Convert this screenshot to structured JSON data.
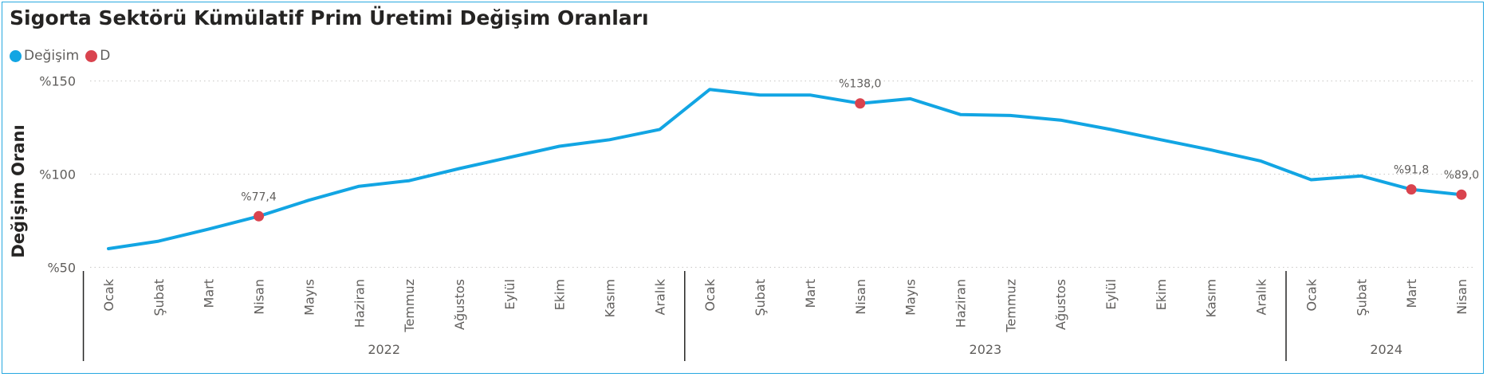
{
  "title": "Sigorta Sektörü Kümülatif Prim Üretimi Değişim Oranları",
  "legend": [
    {
      "label": "Değişim",
      "color": "#12a5e3"
    },
    {
      "label": "D",
      "color": "#d9434e"
    }
  ],
  "chart_data": {
    "type": "line",
    "title": "Sigorta Sektörü Kümülatif Prim Üretimi Değişim Oranları",
    "ylabel": "Değişim Oranı",
    "xlabel": "",
    "ylim": [
      45,
      155
    ],
    "yticks": [
      {
        "value": 50,
        "label": "%50"
      },
      {
        "value": 100,
        "label": "%100"
      },
      {
        "value": 150,
        "label": "%150"
      }
    ],
    "grid": true,
    "legend_position": "top-left",
    "years": [
      {
        "label": "2022",
        "months": 12
      },
      {
        "label": "2023",
        "months": 12
      },
      {
        "label": "2024",
        "months": 4
      }
    ],
    "categories": [
      "Ocak",
      "Şubat",
      "Mart",
      "Nisan",
      "Mayıs",
      "Haziran",
      "Temmuz",
      "Ağustos",
      "Eylül",
      "Ekim",
      "Kasım",
      "Aralık",
      "Ocak",
      "Şubat",
      "Mart",
      "Nisan",
      "Mayıs",
      "Haziran",
      "Temmuz",
      "Ağustos",
      "Eylül",
      "Ekim",
      "Kasım",
      "Aralık",
      "Ocak",
      "Şubat",
      "Mart",
      "Nisan"
    ],
    "series": [
      {
        "name": "Değişim",
        "color": "#12a5e3",
        "values": [
          60,
          64,
          70.5,
          77.4,
          86,
          93.5,
          96.5,
          103,
          109,
          115,
          118.5,
          124,
          145.5,
          142.5,
          142.5,
          138.0,
          140.5,
          132,
          131.5,
          129,
          124,
          118.5,
          113,
          107,
          97,
          99,
          91.8,
          89.0
        ]
      }
    ],
    "markers": [
      {
        "series": "D",
        "index": 3,
        "value": 77.4,
        "label": "%77,4"
      },
      {
        "series": "D",
        "index": 15,
        "value": 138.0,
        "label": "%138,0"
      },
      {
        "series": "D",
        "index": 26,
        "value": 91.8,
        "label": "%91,8"
      },
      {
        "series": "D",
        "index": 27,
        "value": 89.0,
        "label": "%89,0"
      }
    ]
  }
}
